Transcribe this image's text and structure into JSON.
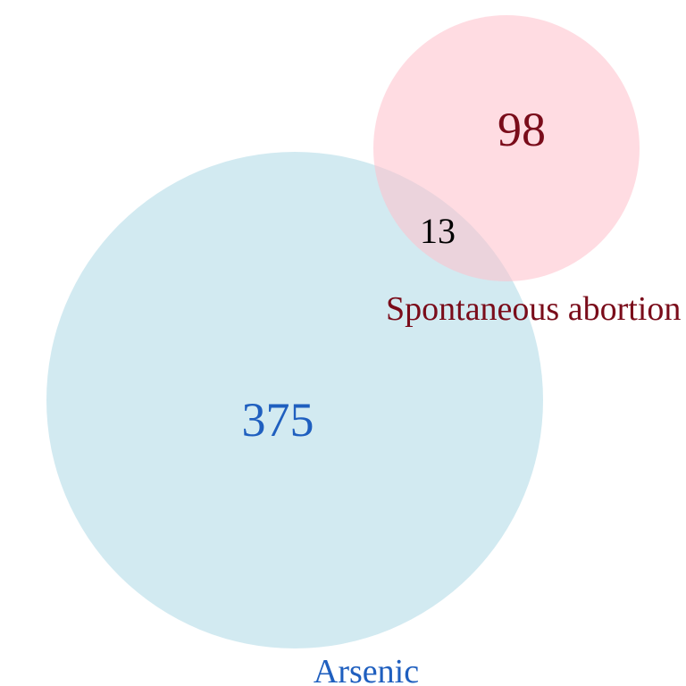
{
  "venn": {
    "sets": [
      {
        "name": "Arsenic",
        "only_count": "375",
        "color": "#add8e6",
        "label_color": "#1f5fbf"
      },
      {
        "name": "Spontaneous abortion",
        "only_count": "98",
        "color": "#ffc0cb",
        "label_color": "#7a0c1a"
      }
    ],
    "intersection_count": "13",
    "intersection_label_color": "#000000",
    "fill_opacity": 0.55
  }
}
